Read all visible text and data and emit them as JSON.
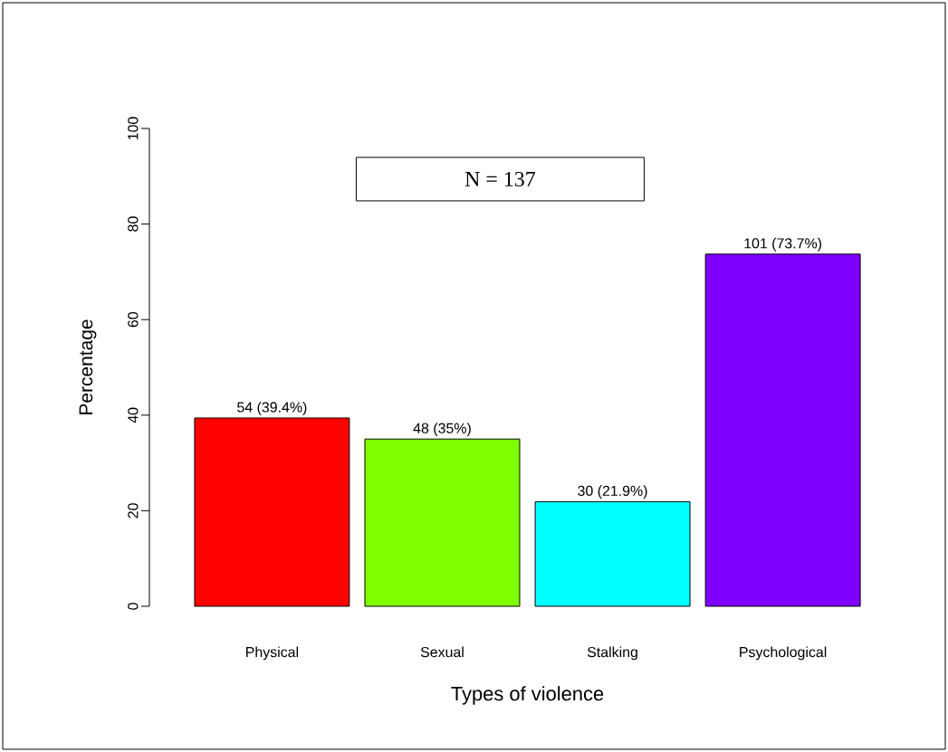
{
  "chart_data": {
    "type": "bar",
    "xlabel": "Types of violence",
    "ylabel": "Percentage",
    "categories": [
      "Physical",
      "Sexual",
      "Stalking",
      "Psychological"
    ],
    "values": [
      39.4,
      35,
      21.9,
      73.7
    ],
    "colors": [
      "#ff0000",
      "#80ff00",
      "#00ffff",
      "#8000ff"
    ],
    "value_labels": [
      "54 (39.4%)",
      "48 (35%)",
      "30 (21.9%)",
      "101 (73.7%)"
    ],
    "ylim": [
      0,
      100
    ],
    "yticks": [
      0,
      20,
      40,
      60,
      80,
      100
    ],
    "grid": false,
    "annotations": [
      "N = 137"
    ]
  }
}
